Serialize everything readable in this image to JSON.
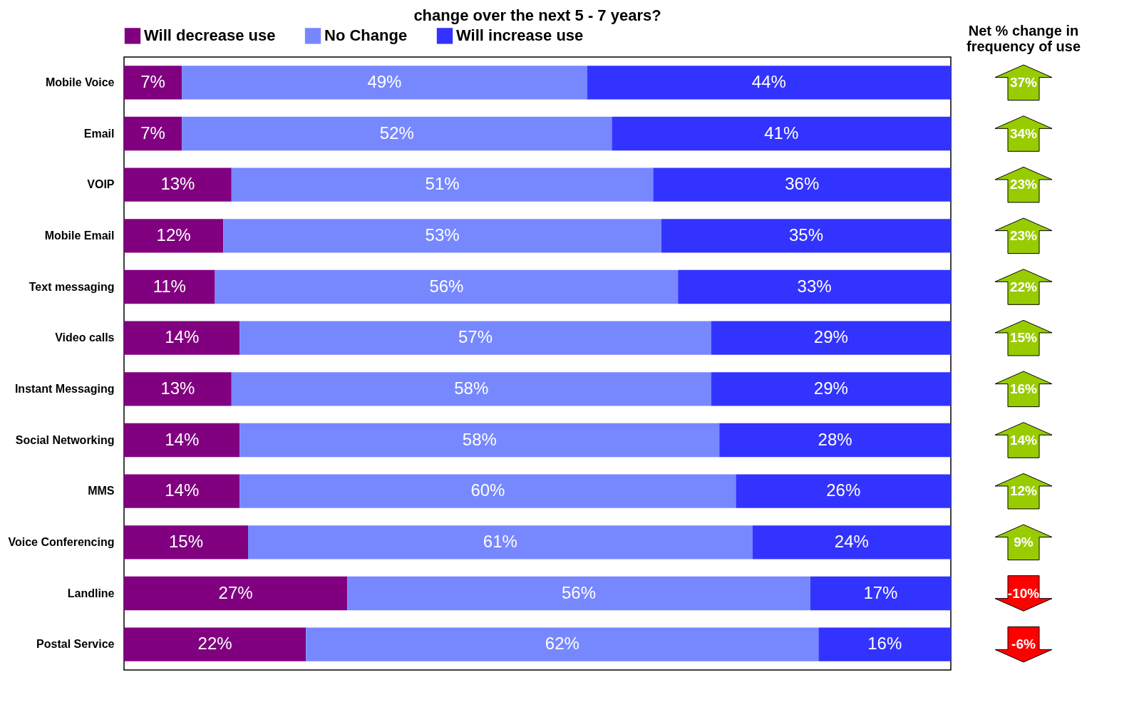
{
  "chart_data": [
    {
      "type": "bar",
      "title": "change over the next 5 - 7 years?",
      "orientation": "horizontal",
      "stacked": true,
      "legend": "top",
      "categories": [
        "Mobile Voice",
        "Email",
        "VOIP",
        "Mobile Email",
        "Text  messaging",
        "Video calls",
        "Instant Messaging",
        "Social Networking",
        "MMS",
        "Voice Conferencing",
        "Landline",
        "Postal Service"
      ],
      "series": [
        {
          "name": "Will decrease use",
          "color": "#800080",
          "values": [
            7,
            7,
            13,
            12,
            11,
            14,
            13,
            14,
            14,
            15,
            27,
            22
          ],
          "value_labels": [
            "7%",
            "7%",
            "13%",
            "12%",
            "11%",
            "14%",
            "13%",
            "14%",
            "14%",
            "15%",
            "27%",
            "22%"
          ]
        },
        {
          "name": "No Change",
          "color": "#7788ff",
          "values": [
            49,
            52,
            51,
            53,
            56,
            57,
            58,
            58,
            60,
            61,
            56,
            62
          ],
          "value_labels": [
            "49%",
            "52%",
            "51%",
            "53%",
            "56%",
            "57%",
            "58%",
            "58%",
            "60%",
            "61%",
            "56%",
            "62%"
          ]
        },
        {
          "name": "Will increase use",
          "color": "#3333ff",
          "values": [
            44,
            41,
            36,
            35,
            33,
            29,
            29,
            28,
            26,
            24,
            17,
            16
          ],
          "value_labels": [
            "44%",
            "41%",
            "36%",
            "35%",
            "33%",
            "29%",
            "29%",
            "28%",
            "26%",
            "24%",
            "17%",
            "16%"
          ]
        }
      ]
    },
    {
      "type": "other",
      "title": "Net % change in frequency of use",
      "categories": [
        null,
        null,
        null,
        null,
        null,
        null,
        null,
        null,
        null,
        null,
        null,
        null
      ],
      "values": [
        37,
        34,
        23,
        23,
        22,
        15,
        16,
        14,
        12,
        9,
        -10,
        -6
      ],
      "value_labels": [
        "37%",
        "34%",
        "23%",
        "23%",
        "22%",
        "15%",
        "16%",
        "14%",
        "12%",
        "9%",
        "-10%",
        "-6%"
      ],
      "colors": [
        "#99cc00",
        "#99cc00",
        "#99cc00",
        "#99cc00",
        "#99cc00",
        "#99cc00",
        "#99cc00",
        "#99cc00",
        "#99cc00",
        "#99cc00",
        "#ff0000",
        "#ff0000"
      ]
    }
  ]
}
